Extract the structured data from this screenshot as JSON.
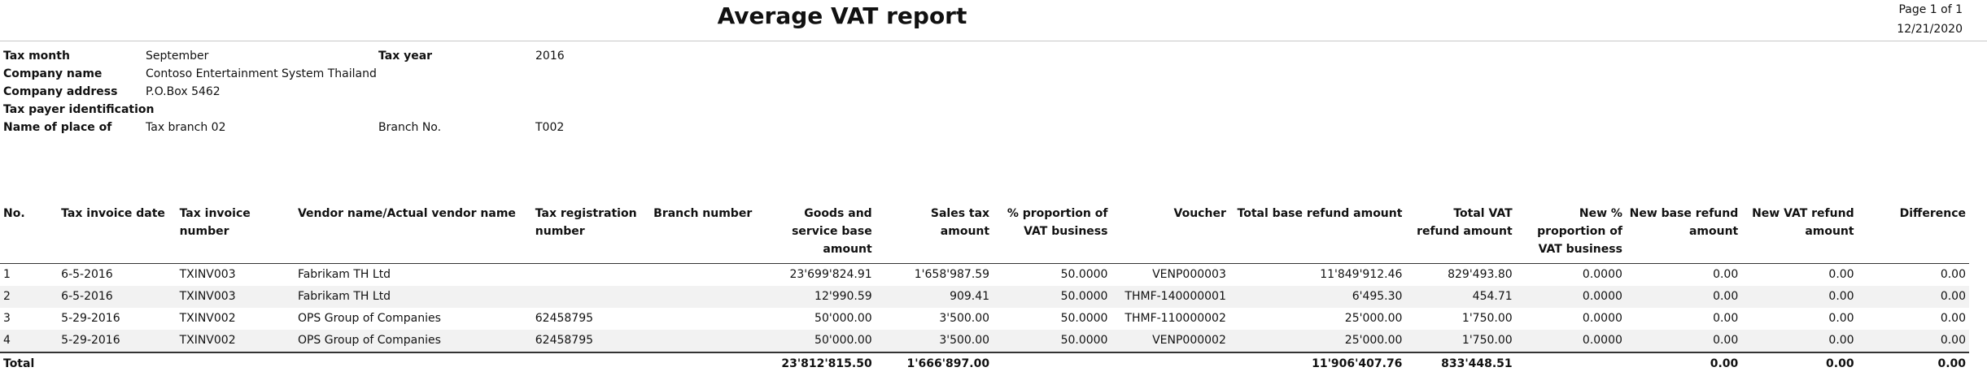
{
  "report": {
    "title": "Average VAT report",
    "page_label": "Page 1 of 1",
    "date": "12/21/2020"
  },
  "header": {
    "tax_month_label": "Tax month",
    "tax_month_value": "September",
    "tax_year_label": "Tax year",
    "tax_year_value": "2016",
    "company_name_label": "Company name",
    "company_name_value": "Contoso Entertainment System Thailand",
    "company_address_label": "Company address",
    "company_address_value": "P.O.Box 5462",
    "tax_payer_label": "Tax payer identification",
    "place_label": "Name of place of",
    "place_value": "Tax branch 02",
    "branch_no_label": "Branch No.",
    "branch_no_value": "T002"
  },
  "table": {
    "columns": [
      "No.",
      "Tax invoice date",
      "Tax invoice number",
      "Vendor name/Actual vendor name",
      "Tax registration number",
      "Branch number",
      "Goods and service base amount",
      "Sales tax amount",
      "% proportion of VAT business",
      "Voucher",
      "Total base refund amount",
      "Total VAT refund amount",
      "New % proportion of VAT business",
      "New base refund amount",
      "New VAT refund amount",
      "Difference"
    ],
    "rows": [
      [
        "1",
        "6-5-2016",
        "TXINV003",
        "Fabrikam TH Ltd",
        "",
        "",
        "23'699'824.91",
        "1'658'987.59",
        "50.0000",
        "VENP000003",
        "11'849'912.46",
        "829'493.80",
        "0.0000",
        "0.00",
        "0.00",
        "0.00"
      ],
      [
        "2",
        "6-5-2016",
        "TXINV003",
        "Fabrikam TH Ltd",
        "",
        "",
        "12'990.59",
        "909.41",
        "50.0000",
        "THMF-140000001",
        "6'495.30",
        "454.71",
        "0.0000",
        "0.00",
        "0.00",
        "0.00"
      ],
      [
        "3",
        "5-29-2016",
        "TXINV002",
        "OPS Group of Companies",
        "62458795",
        "",
        "50'000.00",
        "3'500.00",
        "50.0000",
        "THMF-110000002",
        "25'000.00",
        "1'750.00",
        "0.0000",
        "0.00",
        "0.00",
        "0.00"
      ],
      [
        "4",
        "5-29-2016",
        "TXINV002",
        "OPS Group of Companies",
        "62458795",
        "",
        "50'000.00",
        "3'500.00",
        "50.0000",
        "VENP000002",
        "25'000.00",
        "1'750.00",
        "0.0000",
        "0.00",
        "0.00",
        "0.00"
      ]
    ],
    "total": [
      "Total",
      "",
      "",
      "",
      "",
      "",
      "23'812'815.50",
      "1'666'897.00",
      "",
      "",
      "11'906'407.76",
      "833'448.51",
      "",
      "0.00",
      "0.00",
      "0.00"
    ]
  }
}
